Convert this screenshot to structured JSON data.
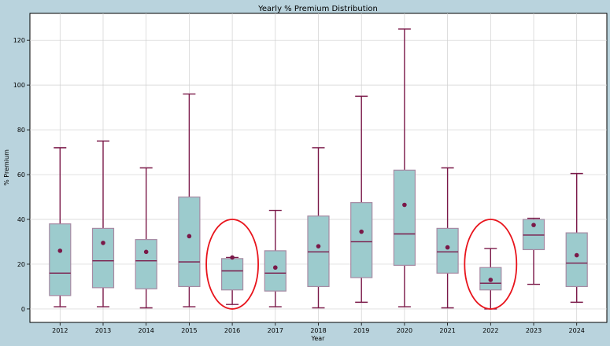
{
  "chart_data": {
    "type": "box",
    "title": "Yearly % Premium Distribution",
    "xlabel": "Year",
    "ylabel": "% Premium",
    "ylim": [
      -6,
      132
    ],
    "yticks": [
      0,
      20,
      40,
      60,
      80,
      100,
      120
    ],
    "grid": true,
    "categories": [
      "2012",
      "2013",
      "2014",
      "2015",
      "2016",
      "2017",
      "2018",
      "2019",
      "2020",
      "2021",
      "2022",
      "2023",
      "2024"
    ],
    "boxes": [
      {
        "min": 1,
        "q1": 6,
        "median": 16,
        "q3": 38,
        "max": 72,
        "mean": 26
      },
      {
        "min": 1,
        "q1": 9.5,
        "median": 21.5,
        "q3": 36,
        "max": 75,
        "mean": 29.5
      },
      {
        "min": 0.5,
        "q1": 9,
        "median": 21.5,
        "q3": 31,
        "max": 63,
        "mean": 25.5
      },
      {
        "min": 1,
        "q1": 10,
        "median": 21,
        "q3": 50,
        "max": 96,
        "mean": 32.5
      },
      {
        "min": 2,
        "q1": 8.5,
        "median": 17,
        "q3": 22.5,
        "max": 23,
        "mean": 23
      },
      {
        "min": 1,
        "q1": 8,
        "median": 16,
        "q3": 26,
        "max": 44,
        "mean": 18.5
      },
      {
        "min": 0.5,
        "q1": 10,
        "median": 25.5,
        "q3": 41.5,
        "max": 72,
        "mean": 28
      },
      {
        "min": 3,
        "q1": 14,
        "median": 30,
        "q3": 47.5,
        "max": 95,
        "mean": 34.5
      },
      {
        "min": 1,
        "q1": 19.5,
        "median": 33.5,
        "q3": 62,
        "max": 125,
        "mean": 46.5
      },
      {
        "min": 0.5,
        "q1": 16,
        "median": 25.5,
        "q3": 36,
        "max": 63,
        "mean": 27.5
      },
      {
        "min": 0,
        "q1": 8.5,
        "median": 11.5,
        "q3": 18.5,
        "max": 27,
        "mean": 13
      },
      {
        "min": 11,
        "q1": 26.5,
        "median": 33,
        "q3": 40,
        "max": 40.5,
        "mean": 37.5
      },
      {
        "min": 3,
        "q1": 10,
        "median": 20.5,
        "q3": 34,
        "max": 60.5,
        "mean": 24
      }
    ],
    "highlighted": [
      "2016",
      "2022"
    ],
    "colors": {
      "box_fill": "#9ccbcd",
      "box_edge": "#a78aa3",
      "line": "#7a1848",
      "mean": "#7a1848",
      "highlight": "#e8141c",
      "plot_bg": "#ffffff",
      "page_bg": "#b9d3dd",
      "grid": "#d0d0d0"
    }
  }
}
